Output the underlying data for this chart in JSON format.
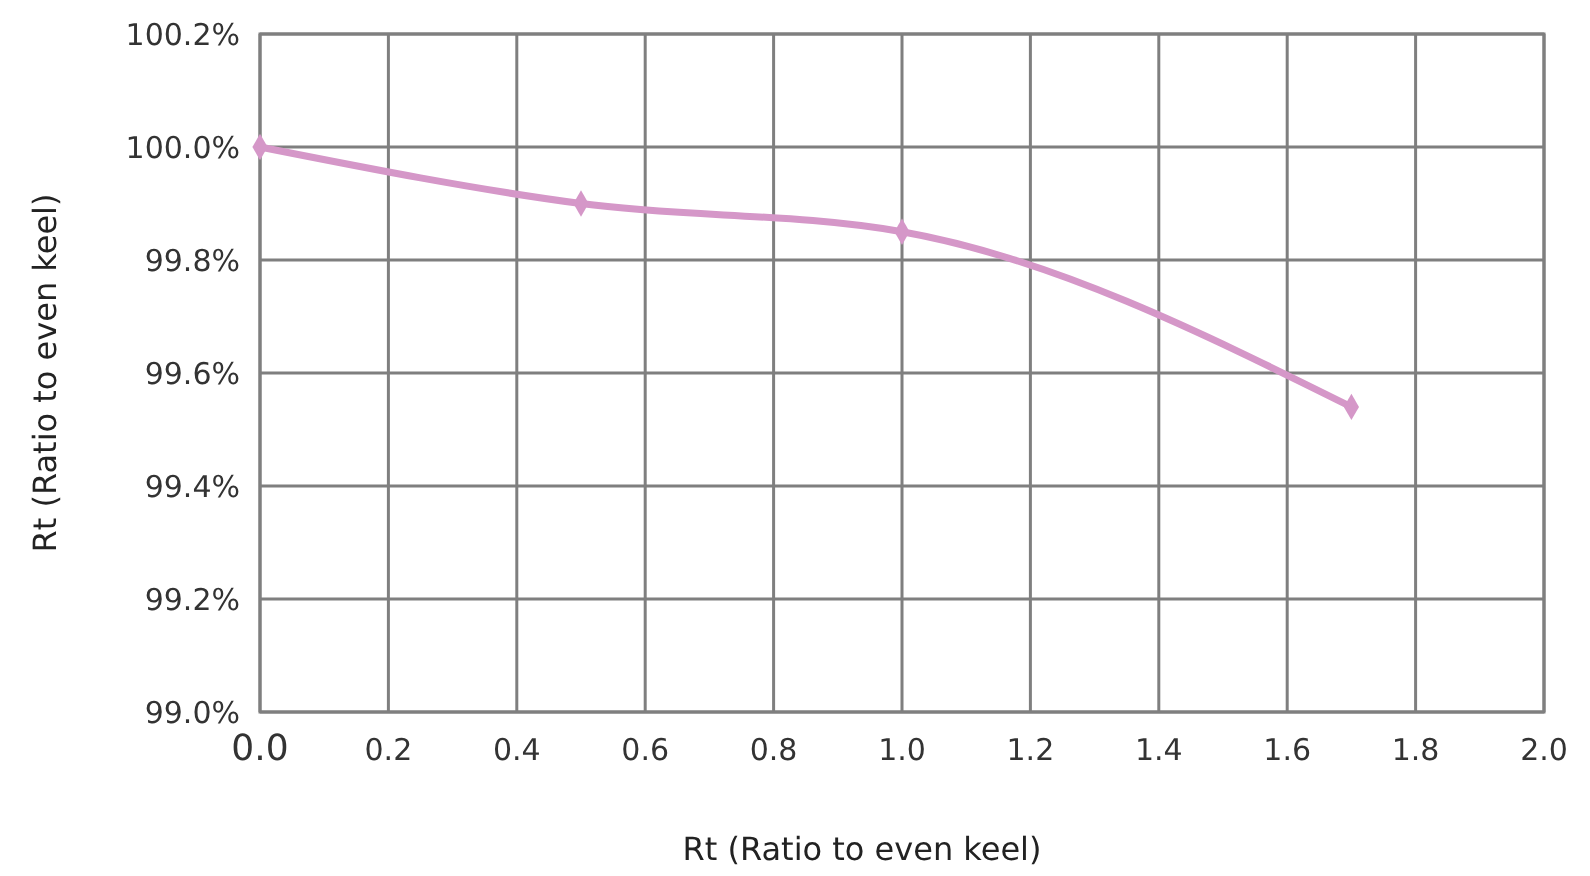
{
  "chart_data": {
    "type": "line",
    "xlabel": "Rt (Ratio to even keel)",
    "ylabel": "Rt (Ratio to even keel)",
    "x": [
      0,
      0.5,
      1.0,
      1.7
    ],
    "series": [
      {
        "color": "#d597c8",
        "values": [
          100.0,
          99.9,
          99.85,
          99.54
        ]
      }
    ],
    "xlim": [
      0,
      2
    ],
    "ylim": [
      99.0,
      100.2
    ],
    "xticks": [
      {
        "value": 0,
        "label": "0.0"
      },
      {
        "value": 0.2,
        "label": "0.2"
      },
      {
        "value": 0.4,
        "label": "0.4"
      },
      {
        "value": 0.6,
        "label": "0.6"
      },
      {
        "value": 0.8,
        "label": "0.8"
      },
      {
        "value": 1.0,
        "label": "1.0"
      },
      {
        "value": 1.2,
        "label": "1.2"
      },
      {
        "value": 1.4,
        "label": "1.4"
      },
      {
        "value": 1.6,
        "label": "1.6"
      },
      {
        "value": 1.8,
        "label": "1.8"
      },
      {
        "value": 2.0,
        "label": "2.0"
      }
    ],
    "yticks": [
      {
        "value": 99.0,
        "label": "99.0%"
      },
      {
        "value": 99.2,
        "label": "99.2%"
      },
      {
        "value": 99.4,
        "label": "99.4%"
      },
      {
        "value": 99.6,
        "label": "99.6%"
      },
      {
        "value": 99.8,
        "label": "99.8%"
      },
      {
        "value": 100.0,
        "label": "100.0%"
      },
      {
        "value": 100.2,
        "label": "100.2%"
      }
    ],
    "grid": true,
    "marker": "diamond",
    "line_style": "solid"
  }
}
